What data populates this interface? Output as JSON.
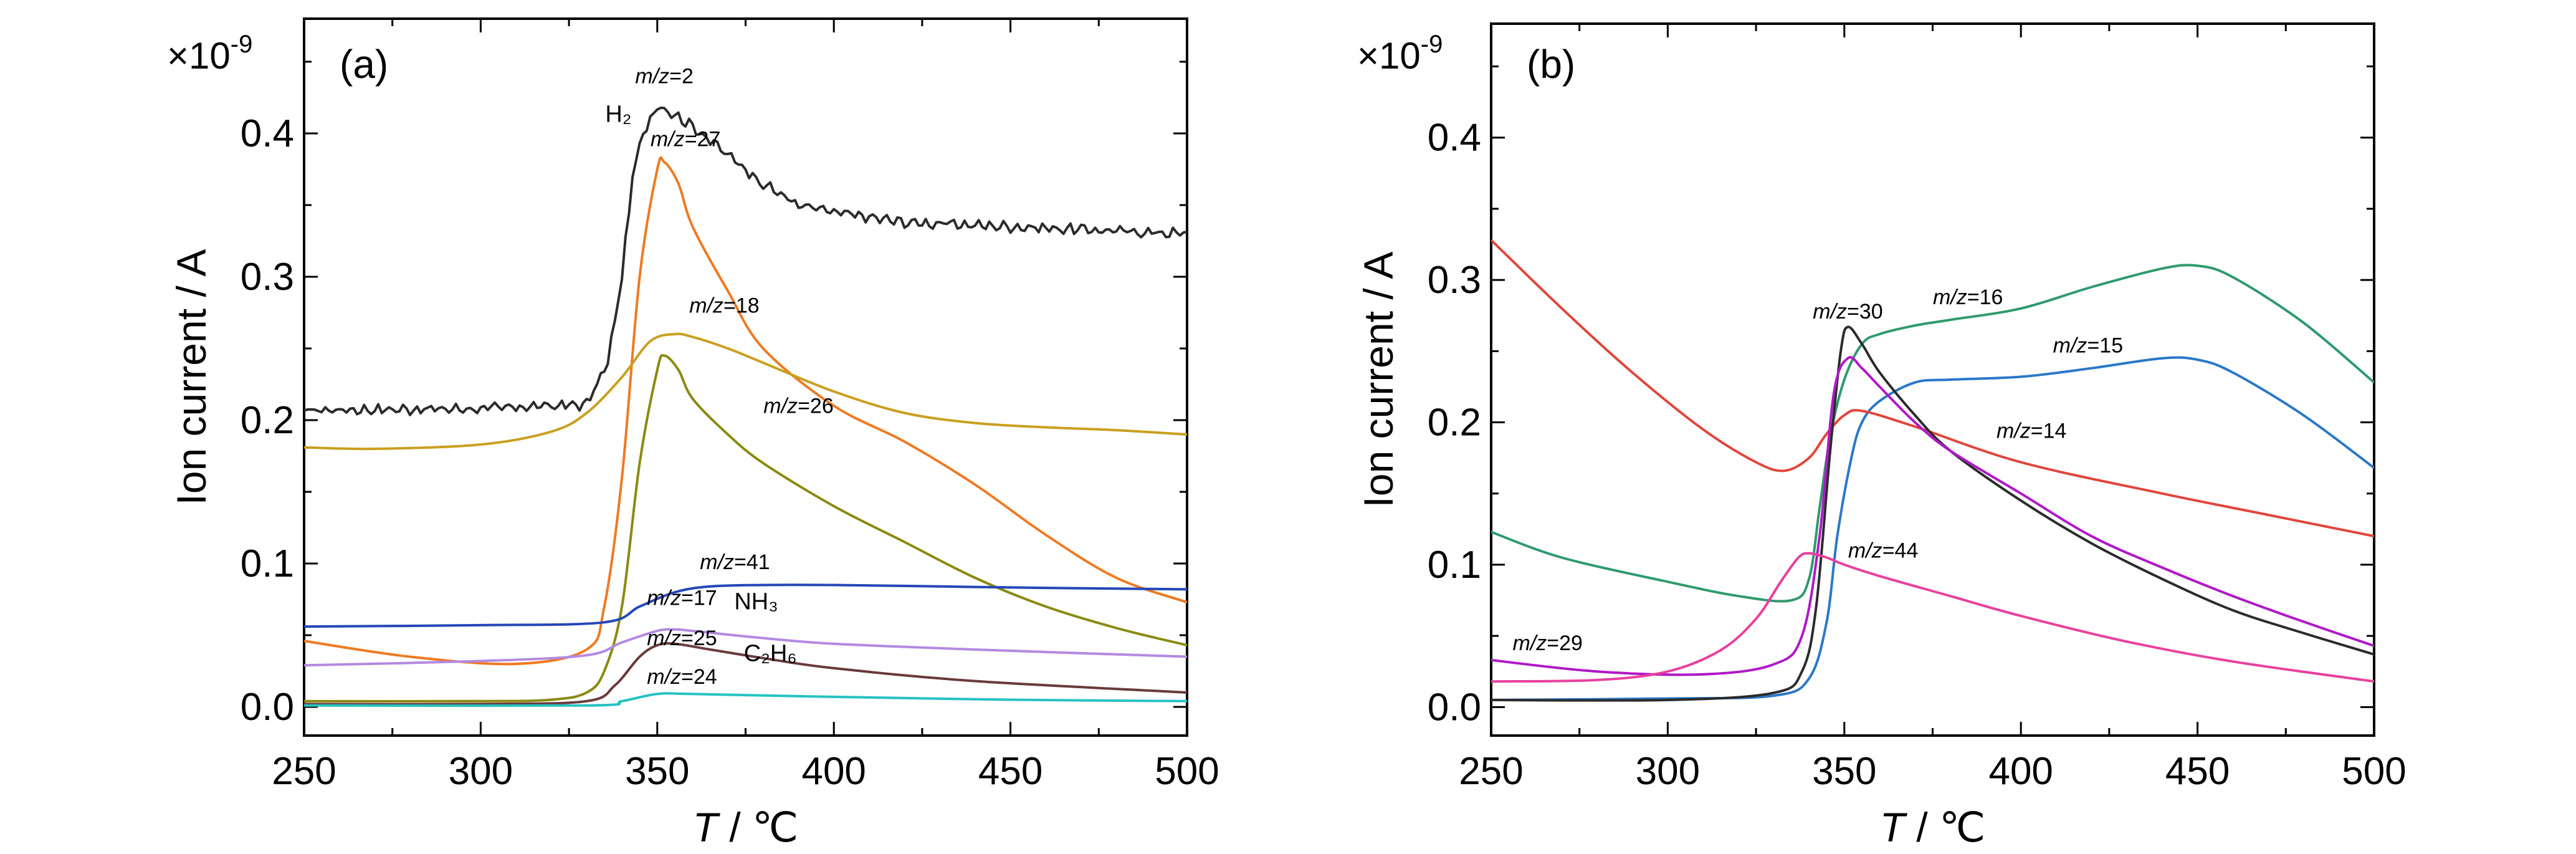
{
  "chart_data": [
    {
      "type": "line",
      "panel_label": "(a)",
      "scale_label": "×10",
      "scale_exponent": "-9",
      "xlabel_italic": "T",
      "xlabel_rest": " / ℃",
      "ylabel": "Ion current / A",
      "xlim": [
        250,
        500
      ],
      "ylim": [
        -0.02,
        0.48
      ],
      "xticks": [
        250,
        300,
        350,
        400,
        450,
        500
      ],
      "yticks": [
        0.0,
        0.1,
        0.2,
        0.3,
        0.4
      ],
      "ytick_labels": [
        "0.0",
        "0.1",
        "0.2",
        "0.3",
        "0.4"
      ],
      "series": [
        {
          "name": "m/z=2",
          "color": "#2b2b2b",
          "noise": 0.004,
          "x": [
            250,
            300,
            330,
            336,
            340,
            343,
            346,
            350,
            355,
            360,
            370,
            380,
            390,
            400,
            420,
            440,
            460,
            480,
            500
          ],
          "y": [
            0.207,
            0.208,
            0.211,
            0.24,
            0.3,
            0.37,
            0.4,
            0.42,
            0.413,
            0.405,
            0.385,
            0.365,
            0.35,
            0.345,
            0.338,
            0.336,
            0.334,
            0.332,
            0.33
          ]
        },
        {
          "name": "m/z=27",
          "color": "#ee7a22",
          "x": [
            250,
            280,
            310,
            330,
            335,
            340,
            345,
            350,
            352,
            356,
            360,
            370,
            380,
            400,
            420,
            440,
            460,
            480,
            500
          ],
          "y": [
            0.046,
            0.035,
            0.03,
            0.04,
            0.07,
            0.16,
            0.3,
            0.375,
            0.38,
            0.365,
            0.335,
            0.29,
            0.25,
            0.21,
            0.185,
            0.155,
            0.12,
            0.09,
            0.073
          ]
        },
        {
          "name": "m/z=18",
          "color": "#c9a020",
          "x": [
            250,
            270,
            300,
            320,
            330,
            340,
            348,
            355,
            360,
            370,
            380,
            400,
            420,
            440,
            460,
            480,
            500
          ],
          "y": [
            0.181,
            0.18,
            0.183,
            0.192,
            0.205,
            0.23,
            0.255,
            0.26,
            0.258,
            0.25,
            0.24,
            0.22,
            0.205,
            0.198,
            0.195,
            0.193,
            0.19
          ]
        },
        {
          "name": "m/z=26",
          "color": "#8a8a12",
          "x": [
            250,
            300,
            320,
            330,
            335,
            340,
            345,
            350,
            352,
            356,
            360,
            370,
            380,
            400,
            420,
            440,
            460,
            480,
            500
          ],
          "y": [
            0.004,
            0.004,
            0.005,
            0.01,
            0.025,
            0.07,
            0.17,
            0.235,
            0.245,
            0.235,
            0.215,
            0.19,
            0.17,
            0.14,
            0.115,
            0.09,
            0.07,
            0.055,
            0.043
          ]
        },
        {
          "name": "m/z=41",
          "color": "#2547b8",
          "x": [
            250,
            300,
            335,
            345,
            355,
            365,
            380,
            400,
            430,
            460,
            500
          ],
          "y": [
            0.056,
            0.057,
            0.059,
            0.07,
            0.08,
            0.084,
            0.085,
            0.085,
            0.084,
            0.083,
            0.082
          ]
        },
        {
          "name": "m/z=17",
          "color": "#b48ae0",
          "x": [
            250,
            300,
            330,
            340,
            350,
            355,
            360,
            380,
            400,
            440,
            500
          ],
          "y": [
            0.029,
            0.032,
            0.036,
            0.045,
            0.053,
            0.054,
            0.053,
            0.048,
            0.044,
            0.04,
            0.035
          ]
        },
        {
          "name": "m/z=25",
          "color": "#6a3a3a",
          "x": [
            250,
            300,
            330,
            338,
            345,
            350,
            355,
            365,
            380,
            400,
            440,
            500
          ],
          "y": [
            0.002,
            0.002,
            0.004,
            0.015,
            0.035,
            0.043,
            0.044,
            0.04,
            0.034,
            0.027,
            0.018,
            0.01
          ]
        },
        {
          "name": "m/z=24",
          "color": "#26c2c2",
          "x": [
            250,
            330,
            340,
            350,
            360,
            400,
            450,
            500
          ],
          "y": [
            0.001,
            0.001,
            0.004,
            0.009,
            0.009,
            0.007,
            0.005,
            0.004
          ]
        }
      ],
      "annotations": [
        {
          "text": "m/z=2",
          "italic_part": "m/z",
          "x": 352,
          "y": 0.435
        },
        {
          "text": "H₂",
          "x": 339,
          "y": 0.408,
          "plain": true
        },
        {
          "text": "m/z=27",
          "italic_part": "m/z",
          "x": 358,
          "y": 0.391
        },
        {
          "text": "m/z=18",
          "italic_part": "m/z",
          "x": 369,
          "y": 0.275
        },
        {
          "text": "m/z=26",
          "italic_part": "m/z",
          "x": 390,
          "y": 0.205
        },
        {
          "text": "m/z=41",
          "italic_part": "m/z",
          "x": 372,
          "y": 0.096
        },
        {
          "text": "m/z=17",
          "italic_part": "m/z",
          "x": 357,
          "y": 0.071
        },
        {
          "text": "NH₃",
          "x": 378,
          "y": 0.068,
          "plain": true
        },
        {
          "text": "m/z=25",
          "italic_part": "m/z",
          "x": 357,
          "y": 0.043
        },
        {
          "text": "C₂H₆",
          "x": 382,
          "y": 0.032,
          "plain": true
        },
        {
          "text": "m/z=24",
          "italic_part": "m/z",
          "x": 357,
          "y": 0.016
        }
      ]
    },
    {
      "type": "line",
      "panel_label": "(b)",
      "scale_label": "×10",
      "scale_exponent": "-9",
      "xlabel_italic": "T",
      "xlabel_rest": " / ℃",
      "ylabel": "Ion current / A",
      "xlim": [
        250,
        500
      ],
      "ylim": [
        -0.02,
        0.48
      ],
      "xticks": [
        250,
        300,
        350,
        400,
        450,
        500
      ],
      "yticks": [
        0.0,
        0.1,
        0.2,
        0.3,
        0.4
      ],
      "ytick_labels": [
        "0.0",
        "0.1",
        "0.2",
        "0.3",
        "0.4"
      ],
      "series": [
        {
          "name": "m/z=16",
          "color": "#2e9a6e",
          "x": [
            250,
            270,
            300,
            320,
            335,
            340,
            343,
            346,
            350,
            355,
            360,
            370,
            380,
            400,
            420,
            440,
            450,
            460,
            480,
            500
          ],
          "y": [
            0.123,
            0.105,
            0.088,
            0.078,
            0.075,
            0.09,
            0.14,
            0.19,
            0.23,
            0.255,
            0.262,
            0.268,
            0.272,
            0.28,
            0.295,
            0.308,
            0.31,
            0.302,
            0.27,
            0.228
          ]
        },
        {
          "name": "m/z=15",
          "color": "#2a78c8",
          "x": [
            250,
            300,
            330,
            340,
            345,
            348,
            352,
            355,
            360,
            370,
            380,
            400,
            420,
            440,
            450,
            460,
            480,
            500
          ],
          "y": [
            0.005,
            0.006,
            0.008,
            0.02,
            0.06,
            0.12,
            0.175,
            0.2,
            0.215,
            0.228,
            0.23,
            0.232,
            0.238,
            0.245,
            0.244,
            0.235,
            0.205,
            0.168
          ]
        },
        {
          "name": "m/z=14",
          "color": "#e0463c",
          "x": [
            250,
            270,
            290,
            310,
            325,
            333,
            340,
            345,
            350,
            355,
            370,
            400,
            440,
            470,
            500
          ],
          "y": [
            0.328,
            0.28,
            0.235,
            0.195,
            0.172,
            0.166,
            0.175,
            0.192,
            0.205,
            0.208,
            0.197,
            0.172,
            0.15,
            0.135,
            0.12
          ]
        },
        {
          "name": "m/z=30",
          "color": "#2b2b2b",
          "x": [
            250,
            300,
            330,
            338,
            342,
            346,
            349,
            351,
            355,
            360,
            370,
            380,
            400,
            420,
            440,
            460,
            480,
            500
          ],
          "y": [
            0.005,
            0.005,
            0.01,
            0.025,
            0.07,
            0.18,
            0.25,
            0.267,
            0.255,
            0.235,
            0.205,
            0.18,
            0.145,
            0.115,
            0.09,
            0.068,
            0.052,
            0.037
          ]
        },
        {
          "name": "m/z=29",
          "color": "#b018c8",
          "x": [
            250,
            280,
            310,
            330,
            338,
            343,
            347,
            351,
            355,
            360,
            370,
            380,
            400,
            420,
            440,
            460,
            480,
            500
          ],
          "y": [
            0.033,
            0.025,
            0.023,
            0.03,
            0.05,
            0.12,
            0.22,
            0.245,
            0.238,
            0.225,
            0.2,
            0.18,
            0.15,
            0.12,
            0.098,
            0.078,
            0.06,
            0.043
          ]
        },
        {
          "name": "m/z=44",
          "color": "#e8409e",
          "x": [
            250,
            280,
            300,
            315,
            325,
            332,
            337,
            340,
            345,
            350,
            360,
            380,
            400,
            430,
            460,
            500
          ],
          "y": [
            0.018,
            0.019,
            0.025,
            0.04,
            0.062,
            0.088,
            0.105,
            0.108,
            0.105,
            0.1,
            0.092,
            0.078,
            0.064,
            0.046,
            0.032,
            0.018
          ]
        }
      ],
      "annotations": [
        {
          "text": "m/z=30",
          "italic_part": "m/z",
          "x": 351,
          "y": 0.273
        },
        {
          "text": "m/z=16",
          "italic_part": "m/z",
          "x": 385,
          "y": 0.283
        },
        {
          "text": "m/z=15",
          "italic_part": "m/z",
          "x": 419,
          "y": 0.249
        },
        {
          "text": "m/z=14",
          "italic_part": "m/z",
          "x": 403,
          "y": 0.189
        },
        {
          "text": "m/z=44",
          "italic_part": "m/z",
          "x": 361,
          "y": 0.105
        },
        {
          "text": "m/z=29",
          "italic_part": "m/z",
          "x": 266,
          "y": 0.04
        }
      ]
    }
  ]
}
